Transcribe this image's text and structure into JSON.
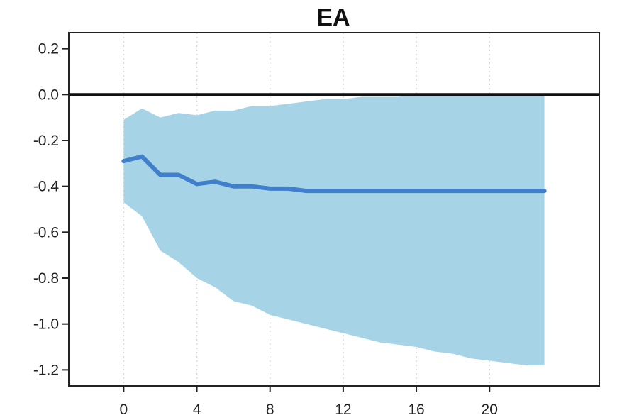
{
  "chart_data": {
    "type": "line",
    "title": "EA",
    "xlabel": "",
    "ylabel": "",
    "xlim": [
      -3,
      26
    ],
    "ylim": [
      -1.27,
      0.27
    ],
    "x_ticks": [
      0,
      4,
      8,
      12,
      16,
      20
    ],
    "x_tick_labels": [
      "0",
      "4",
      "8",
      "12",
      "16",
      "20"
    ],
    "y_ticks": [
      0.2,
      0.0,
      -0.2,
      -0.4,
      -0.6,
      -0.8,
      -1.0,
      -1.2
    ],
    "y_tick_labels": [
      "0.2",
      "0.0",
      "-0.2",
      "-0.4",
      "-0.6",
      "-0.8",
      "-1.0",
      "-1.2"
    ],
    "grid": "vertical dotted",
    "reference_line": 0.0,
    "x": [
      0,
      1,
      2,
      3,
      4,
      5,
      6,
      7,
      8,
      9,
      10,
      11,
      12,
      13,
      14,
      15,
      16,
      17,
      18,
      19,
      20,
      21,
      22,
      23
    ],
    "series": [
      {
        "values": [
          -0.29,
          -0.27,
          -0.35,
          -0.35,
          -0.39,
          -0.38,
          -0.4,
          -0.4,
          -0.41,
          -0.41,
          -0.42,
          -0.42,
          -0.42,
          -0.42,
          -0.42,
          -0.42,
          -0.42,
          -0.42,
          -0.42,
          -0.42,
          -0.42,
          -0.42,
          -0.42,
          -0.42
        ],
        "color": "#3f7fcc"
      }
    ],
    "band": {
      "upper": [
        -0.11,
        -0.06,
        -0.1,
        -0.08,
        -0.09,
        -0.07,
        -0.07,
        -0.05,
        -0.05,
        -0.04,
        -0.03,
        -0.02,
        -0.02,
        -0.01,
        -0.01,
        -0.01,
        0.0,
        0.0,
        0.0,
        0.0,
        0.0,
        0.0,
        0.0,
        0.0
      ],
      "lower": [
        -0.47,
        -0.53,
        -0.68,
        -0.73,
        -0.8,
        -0.84,
        -0.9,
        -0.92,
        -0.96,
        -0.98,
        -1.0,
        -1.02,
        -1.04,
        -1.06,
        -1.08,
        -1.09,
        -1.1,
        -1.12,
        -1.13,
        -1.15,
        -1.16,
        -1.17,
        -1.18,
        -1.18
      ],
      "color": "#a6d4e6"
    }
  }
}
